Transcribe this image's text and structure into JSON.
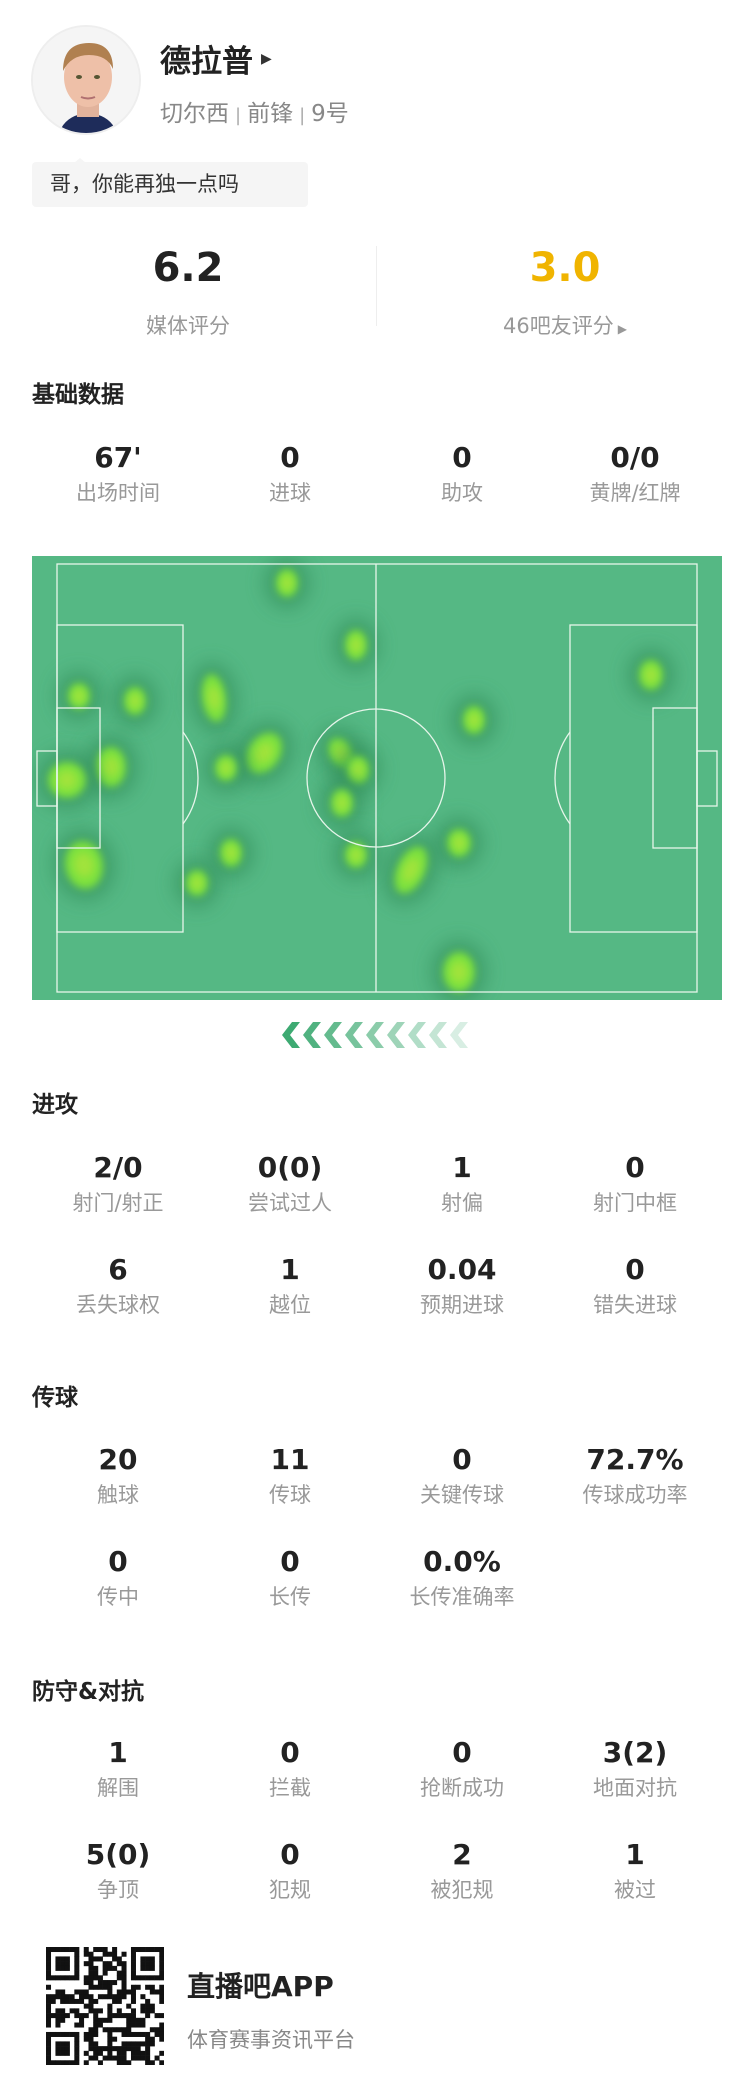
{
  "player": {
    "name": "德拉普",
    "team": "切尔西",
    "position": "前锋",
    "number": "9号",
    "comment": "哥，你能再独一点吗"
  },
  "ratings": {
    "media_score": "6.2",
    "media_label": "媒体评分",
    "fan_score": "3.0",
    "fan_label": "46吧友评分",
    "fan_color": "#f0b400"
  },
  "sections": [
    {
      "title": "基础数据",
      "rows": [
        [
          {
            "value": "67'",
            "label": "出场时间"
          },
          {
            "value": "0",
            "label": "进球"
          },
          {
            "value": "0",
            "label": "助攻"
          },
          {
            "value": "0/0",
            "label": "黄牌/红牌"
          }
        ]
      ]
    },
    {
      "title": "进攻",
      "rows": [
        [
          {
            "value": "2/0",
            "label": "射门/射正"
          },
          {
            "value": "0(0)",
            "label": "尝试过人"
          },
          {
            "value": "1",
            "label": "射偏"
          },
          {
            "value": "0",
            "label": "射门中框"
          }
        ],
        [
          {
            "value": "6",
            "label": "丢失球权"
          },
          {
            "value": "1",
            "label": "越位"
          },
          {
            "value": "0.04",
            "label": "预期进球"
          },
          {
            "value": "0",
            "label": "错失进球"
          }
        ]
      ]
    },
    {
      "title": "传球",
      "rows": [
        [
          {
            "value": "20",
            "label": "触球"
          },
          {
            "value": "11",
            "label": "传球"
          },
          {
            "value": "0",
            "label": "关键传球"
          },
          {
            "value": "72.7%",
            "label": "传球成功率"
          }
        ],
        [
          {
            "value": "0",
            "label": "传中"
          },
          {
            "value": "0",
            "label": "长传"
          },
          {
            "value": "0.0%",
            "label": "长传准确率"
          }
        ]
      ]
    },
    {
      "title": "防守&对抗",
      "rows": [
        [
          {
            "value": "1",
            "label": "解围"
          },
          {
            "value": "0",
            "label": "拦截"
          },
          {
            "value": "0",
            "label": "抢断成功"
          },
          {
            "value": "3(2)",
            "label": "地面对抗"
          }
        ],
        [
          {
            "value": "5(0)",
            "label": "争顶"
          },
          {
            "value": "0",
            "label": "犯规"
          },
          {
            "value": "2",
            "label": "被犯规"
          },
          {
            "value": "1",
            "label": "被过"
          }
        ]
      ]
    }
  ],
  "heatmap": {
    "pitch_color": "#55b884",
    "hot_color": "#7ee23c",
    "attack_direction": "left"
  },
  "footer": {
    "app_name": "直播吧APP",
    "slogan": "体育赛事资讯平台"
  }
}
